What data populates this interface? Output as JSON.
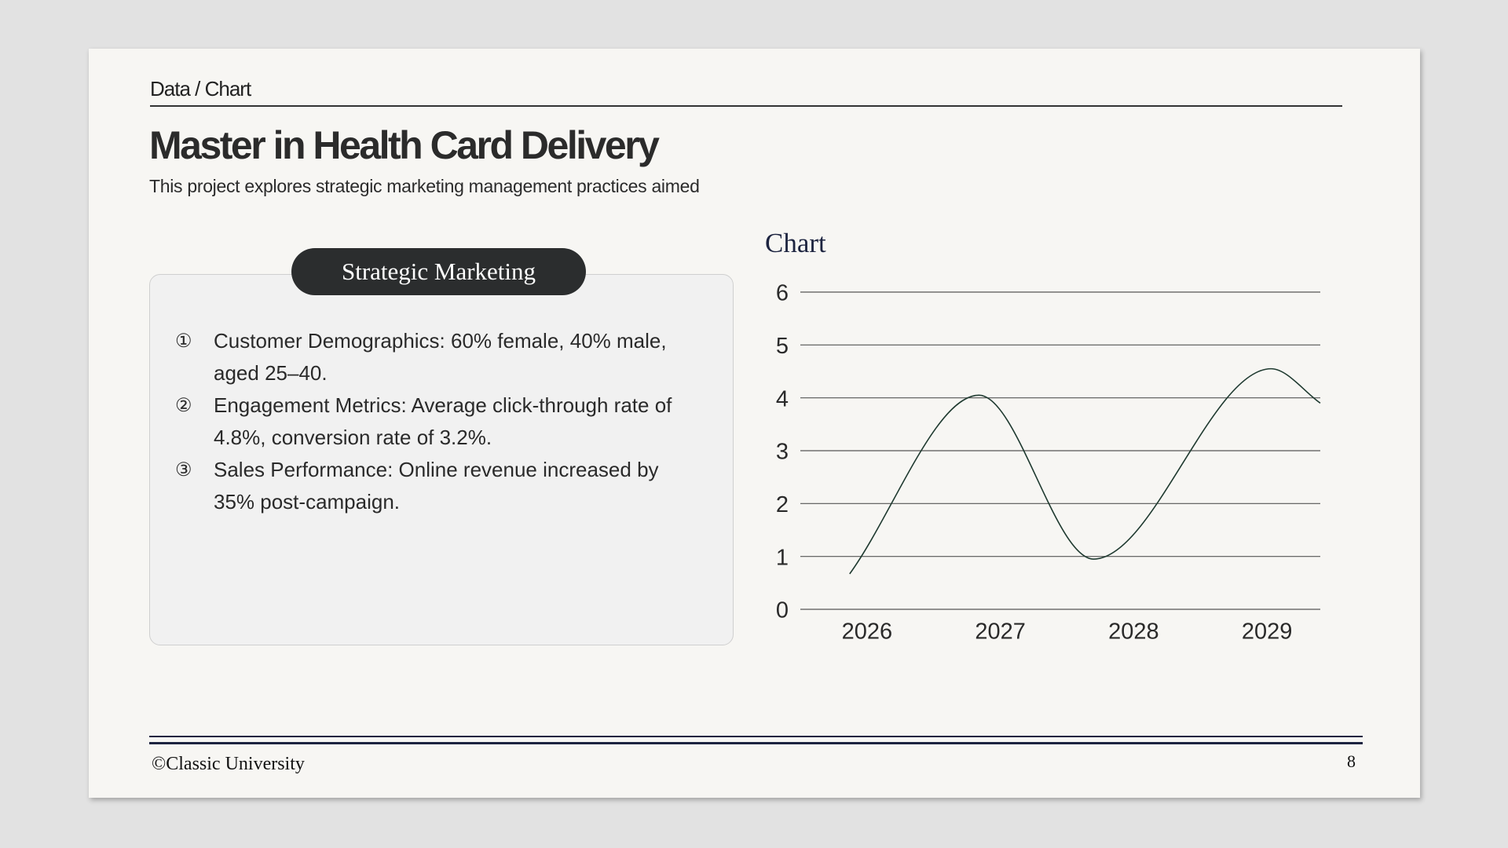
{
  "header": {
    "breadcrumb": "Data / Chart",
    "title": "Master in Health Card Delivery",
    "subtitle": "This project explores strategic marketing management practices aimed"
  },
  "panel": {
    "title": "Strategic Marketing",
    "items": [
      {
        "marker": "①",
        "text": "Customer Demographics: 60% female, 40% male, aged 25–40."
      },
      {
        "marker": "②",
        "text": "Engagement Metrics: Average click-through rate of 4.8%, conversion rate of 3.2%."
      },
      {
        "marker": "③",
        "text": "Sales Performance: Online revenue increased by 35% post-campaign."
      }
    ]
  },
  "chart_data": {
    "type": "line",
    "title": "Chart",
    "x": [
      2025.87,
      2026.84,
      2027.7,
      2029.03,
      2029.4
    ],
    "values": [
      0.67,
      4.05,
      0.95,
      4.55,
      3.9
    ],
    "color": "#1f3a30",
    "smooth": true,
    "xlim": [
      2025.5,
      2029.4
    ],
    "xticks": [
      2026,
      2027,
      2028,
      2029
    ],
    "ylim": [
      0,
      6
    ],
    "yticks": [
      0,
      1,
      2,
      3,
      4,
      5,
      6
    ],
    "grid": true
  },
  "footer": {
    "copyright": "©Classic University",
    "page": "8"
  }
}
